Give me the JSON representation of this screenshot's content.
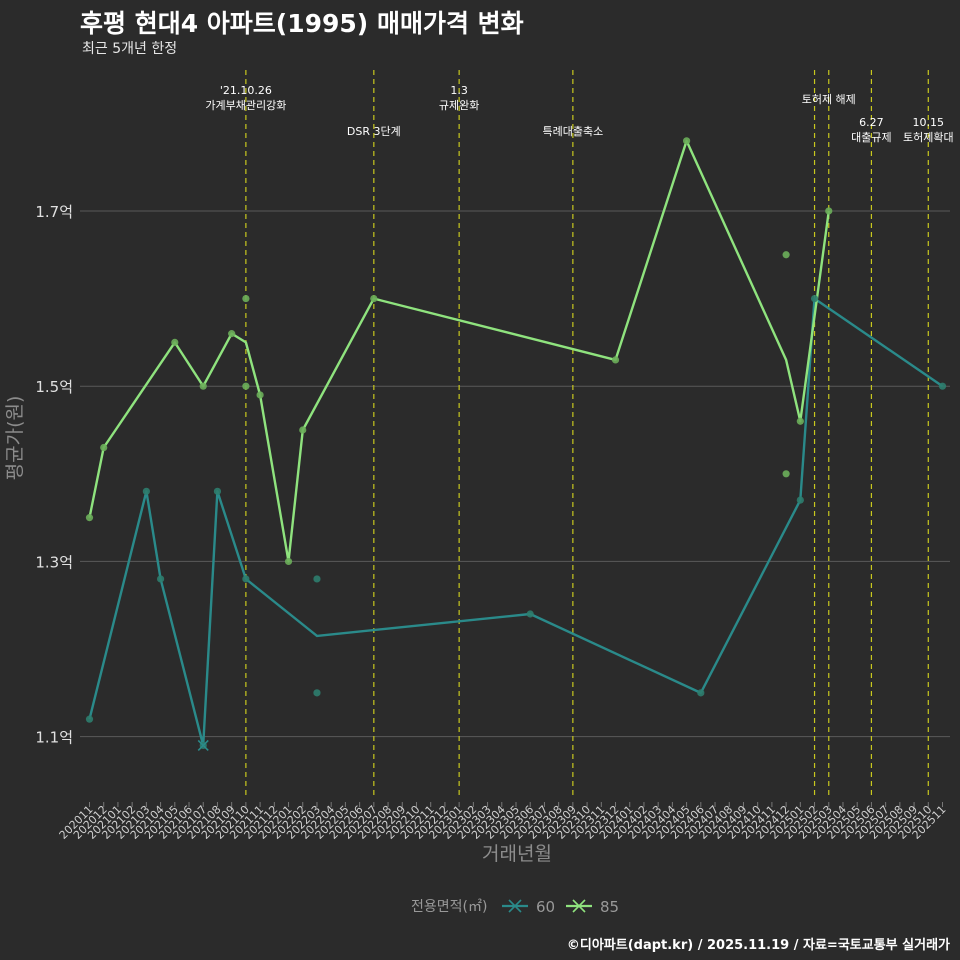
{
  "title": "후평 현대4 아파트(1995) 매매가격 변화",
  "subtitle": "최근 5개년 한정",
  "caption": "©디아파트(dapt.kr) / 2025.11.19 / 자료=국토교통부 실거래가",
  "colors": {
    "background": "#2b2b2b",
    "grid": "#5a5a5a",
    "vline": "#c8c81e",
    "series_60": "#2a8a8a",
    "series_85": "#8fe37e",
    "points_60": "#2e7d6e",
    "points_85": "#6cae5a"
  },
  "chart_data": {
    "type": "line",
    "xlabel": "거래년월",
    "ylabel": "평균가(원)",
    "ylim": [
      1.03,
      1.87
    ],
    "yticks": [
      {
        "value": 1.1,
        "label": "1.1억"
      },
      {
        "value": 1.3,
        "label": "1.3억"
      },
      {
        "value": 1.5,
        "label": "1.5억"
      },
      {
        "value": 1.7,
        "label": "1.7억"
      }
    ],
    "categories": [
      "202011",
      "202012",
      "202101",
      "202102",
      "202103",
      "202104",
      "202105",
      "202106",
      "202107",
      "202108",
      "202109",
      "202110",
      "202111",
      "202112",
      "202201",
      "202202",
      "202203",
      "202204",
      "202205",
      "202206",
      "202207",
      "202208",
      "202209",
      "202210",
      "202211",
      "202212",
      "202301",
      "202302",
      "202303",
      "202304",
      "202305",
      "202306",
      "202307",
      "202308",
      "202309",
      "202310",
      "202311",
      "202312",
      "202401",
      "202402",
      "202403",
      "202404",
      "202405",
      "202406",
      "202407",
      "202408",
      "202409",
      "202410",
      "202411",
      "202412",
      "202501",
      "202502",
      "202503",
      "202504",
      "202505",
      "202506",
      "202507",
      "202508",
      "202509",
      "202510",
      "202511"
    ],
    "legend_title": "전용면적(㎡)",
    "series": [
      {
        "name": "60",
        "line": [
          [
            "202011",
            1.12
          ],
          [
            "202103",
            1.38
          ],
          [
            "202104",
            1.28
          ],
          [
            "202107",
            1.09
          ],
          [
            "202108",
            1.38
          ],
          [
            "202110",
            1.28
          ],
          [
            "202203",
            1.215
          ],
          [
            "202306",
            1.24
          ],
          [
            "202406",
            1.15
          ],
          [
            "202501",
            1.37
          ],
          [
            "202502",
            1.6
          ],
          [
            "202511",
            1.5
          ]
        ],
        "points": [
          [
            "202011",
            1.12
          ],
          [
            "202103",
            1.38
          ],
          [
            "202104",
            1.28
          ],
          [
            "202107",
            1.09
          ],
          [
            "202108",
            1.38
          ],
          [
            "202110",
            1.28
          ],
          [
            "202203",
            1.28
          ],
          [
            "202203",
            1.15
          ],
          [
            "202306",
            1.24
          ],
          [
            "202406",
            1.15
          ],
          [
            "202501",
            1.37
          ],
          [
            "202502",
            1.6
          ],
          [
            "202511",
            1.5
          ]
        ],
        "cross_marker": [
          "202107",
          1.09
        ]
      },
      {
        "name": "85",
        "line": [
          [
            "202011",
            1.35
          ],
          [
            "202012",
            1.43
          ],
          [
            "202105",
            1.55
          ],
          [
            "202107",
            1.5
          ],
          [
            "202109",
            1.56
          ],
          [
            "202110",
            1.55
          ],
          [
            "202111",
            1.49
          ],
          [
            "202201",
            1.3
          ],
          [
            "202202",
            1.45
          ],
          [
            "202207",
            1.6
          ],
          [
            "202312",
            1.53
          ],
          [
            "202405",
            1.78
          ],
          [
            "202412",
            1.53
          ],
          [
            "202501",
            1.46
          ],
          [
            "202503",
            1.7
          ]
        ],
        "points": [
          [
            "202011",
            1.35
          ],
          [
            "202012",
            1.43
          ],
          [
            "202105",
            1.55
          ],
          [
            "202107",
            1.5
          ],
          [
            "202109",
            1.56
          ],
          [
            "202110",
            1.6
          ],
          [
            "202110",
            1.5
          ],
          [
            "202111",
            1.49
          ],
          [
            "202201",
            1.3
          ],
          [
            "202202",
            1.45
          ],
          [
            "202207",
            1.6
          ],
          [
            "202312",
            1.53
          ],
          [
            "202405",
            1.78
          ],
          [
            "202412",
            1.65
          ],
          [
            "202412",
            1.4
          ],
          [
            "202501",
            1.46
          ],
          [
            "202503",
            1.7
          ]
        ]
      }
    ],
    "events": [
      {
        "month": "202110",
        "lines": [
          "'21.10.26",
          "가계부채관리강화"
        ],
        "level": 1
      },
      {
        "month": "202207",
        "lines": [
          "DSR 3단계"
        ],
        "level": 3
      },
      {
        "month": "202301",
        "lines": [
          "1.3",
          "규제완화"
        ],
        "level": 1
      },
      {
        "month": "202309",
        "lines": [
          "특례대출축소"
        ],
        "level": 3
      },
      {
        "month": "202502",
        "lines": [],
        "level": 0
      },
      {
        "month": "202503",
        "lines": [
          "토허제 해제"
        ],
        "level": 2
      },
      {
        "month": "202506",
        "lines": [
          "6.27",
          "대출규제"
        ],
        "level": 4
      },
      {
        "month": "202510",
        "lines": [
          "10.15",
          "토허제확대"
        ],
        "level": 4
      }
    ]
  }
}
